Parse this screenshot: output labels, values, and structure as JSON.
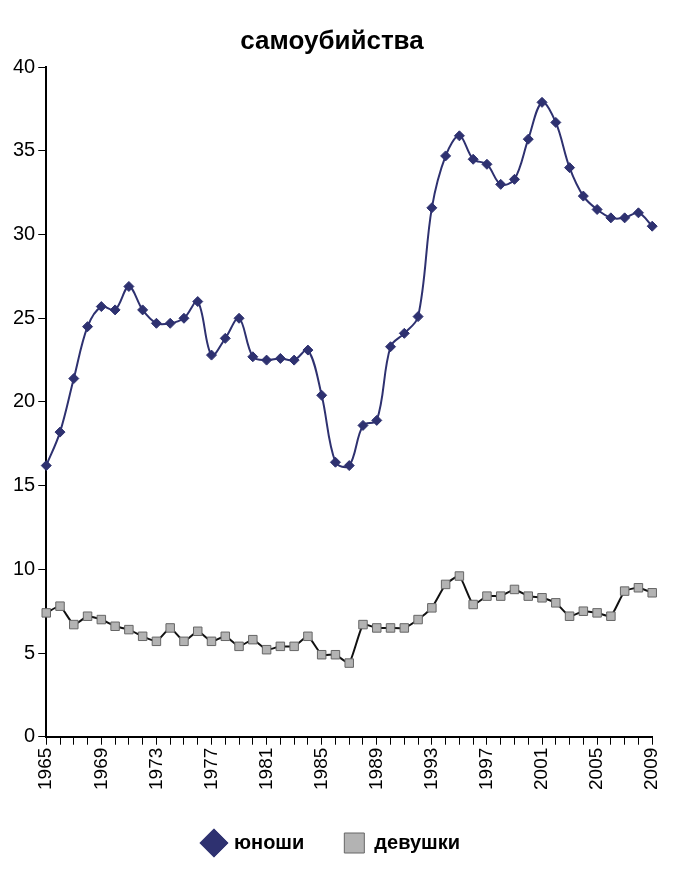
{
  "chart_data": {
    "type": "line",
    "title": "самоубийства",
    "categories": [
      "1965",
      null,
      null,
      null,
      "1969",
      null,
      null,
      null,
      "1973",
      null,
      null,
      null,
      "1977",
      null,
      null,
      null,
      "1981",
      null,
      null,
      null,
      "1985",
      null,
      null,
      null,
      "1989",
      null,
      null,
      null,
      "1993",
      null,
      null,
      null,
      "1997",
      null,
      null,
      null,
      "2001",
      null,
      null,
      null,
      "2005",
      null,
      null,
      null,
      "2009"
    ],
    "series": [
      {
        "name": "юноши",
        "color": "#2e3170",
        "marker": "diamond",
        "values": [
          16.2,
          18.2,
          21.4,
          24.5,
          25.7,
          25.5,
          26.9,
          25.5,
          24.7,
          24.7,
          25.0,
          26.0,
          22.8,
          23.8,
          25.0,
          22.7,
          22.5,
          22.6,
          22.5,
          23.1,
          20.4,
          16.4,
          16.2,
          18.6,
          18.9,
          23.3,
          24.1,
          25.1,
          31.6,
          34.7,
          35.9,
          34.5,
          34.2,
          33.0,
          33.3,
          35.7,
          37.9,
          36.7,
          34.0,
          32.3,
          31.5,
          31.0,
          31.0,
          31.3,
          30.5
        ]
      },
      {
        "name": "девушки",
        "color": "#b3b3b3",
        "marker": "square",
        "values": [
          7.4,
          7.8,
          6.7,
          7.2,
          7.0,
          6.6,
          6.4,
          6.0,
          5.7,
          6.5,
          5.7,
          6.3,
          5.7,
          6.0,
          5.4,
          5.8,
          5.2,
          5.4,
          5.4,
          6.0,
          4.9,
          4.9,
          4.4,
          6.7,
          6.5,
          6.5,
          6.5,
          7.0,
          7.7,
          9.1,
          9.6,
          7.9,
          8.4,
          8.4,
          8.8,
          8.4,
          8.3,
          8.0,
          7.2,
          7.5,
          7.4,
          7.2,
          8.7,
          8.9,
          8.6
        ]
      }
    ],
    "ylim": [
      0,
      40
    ],
    "yticks": [
      0,
      5,
      10,
      15,
      20,
      25,
      30,
      35,
      40
    ],
    "grid": false,
    "legend": "bottom"
  }
}
